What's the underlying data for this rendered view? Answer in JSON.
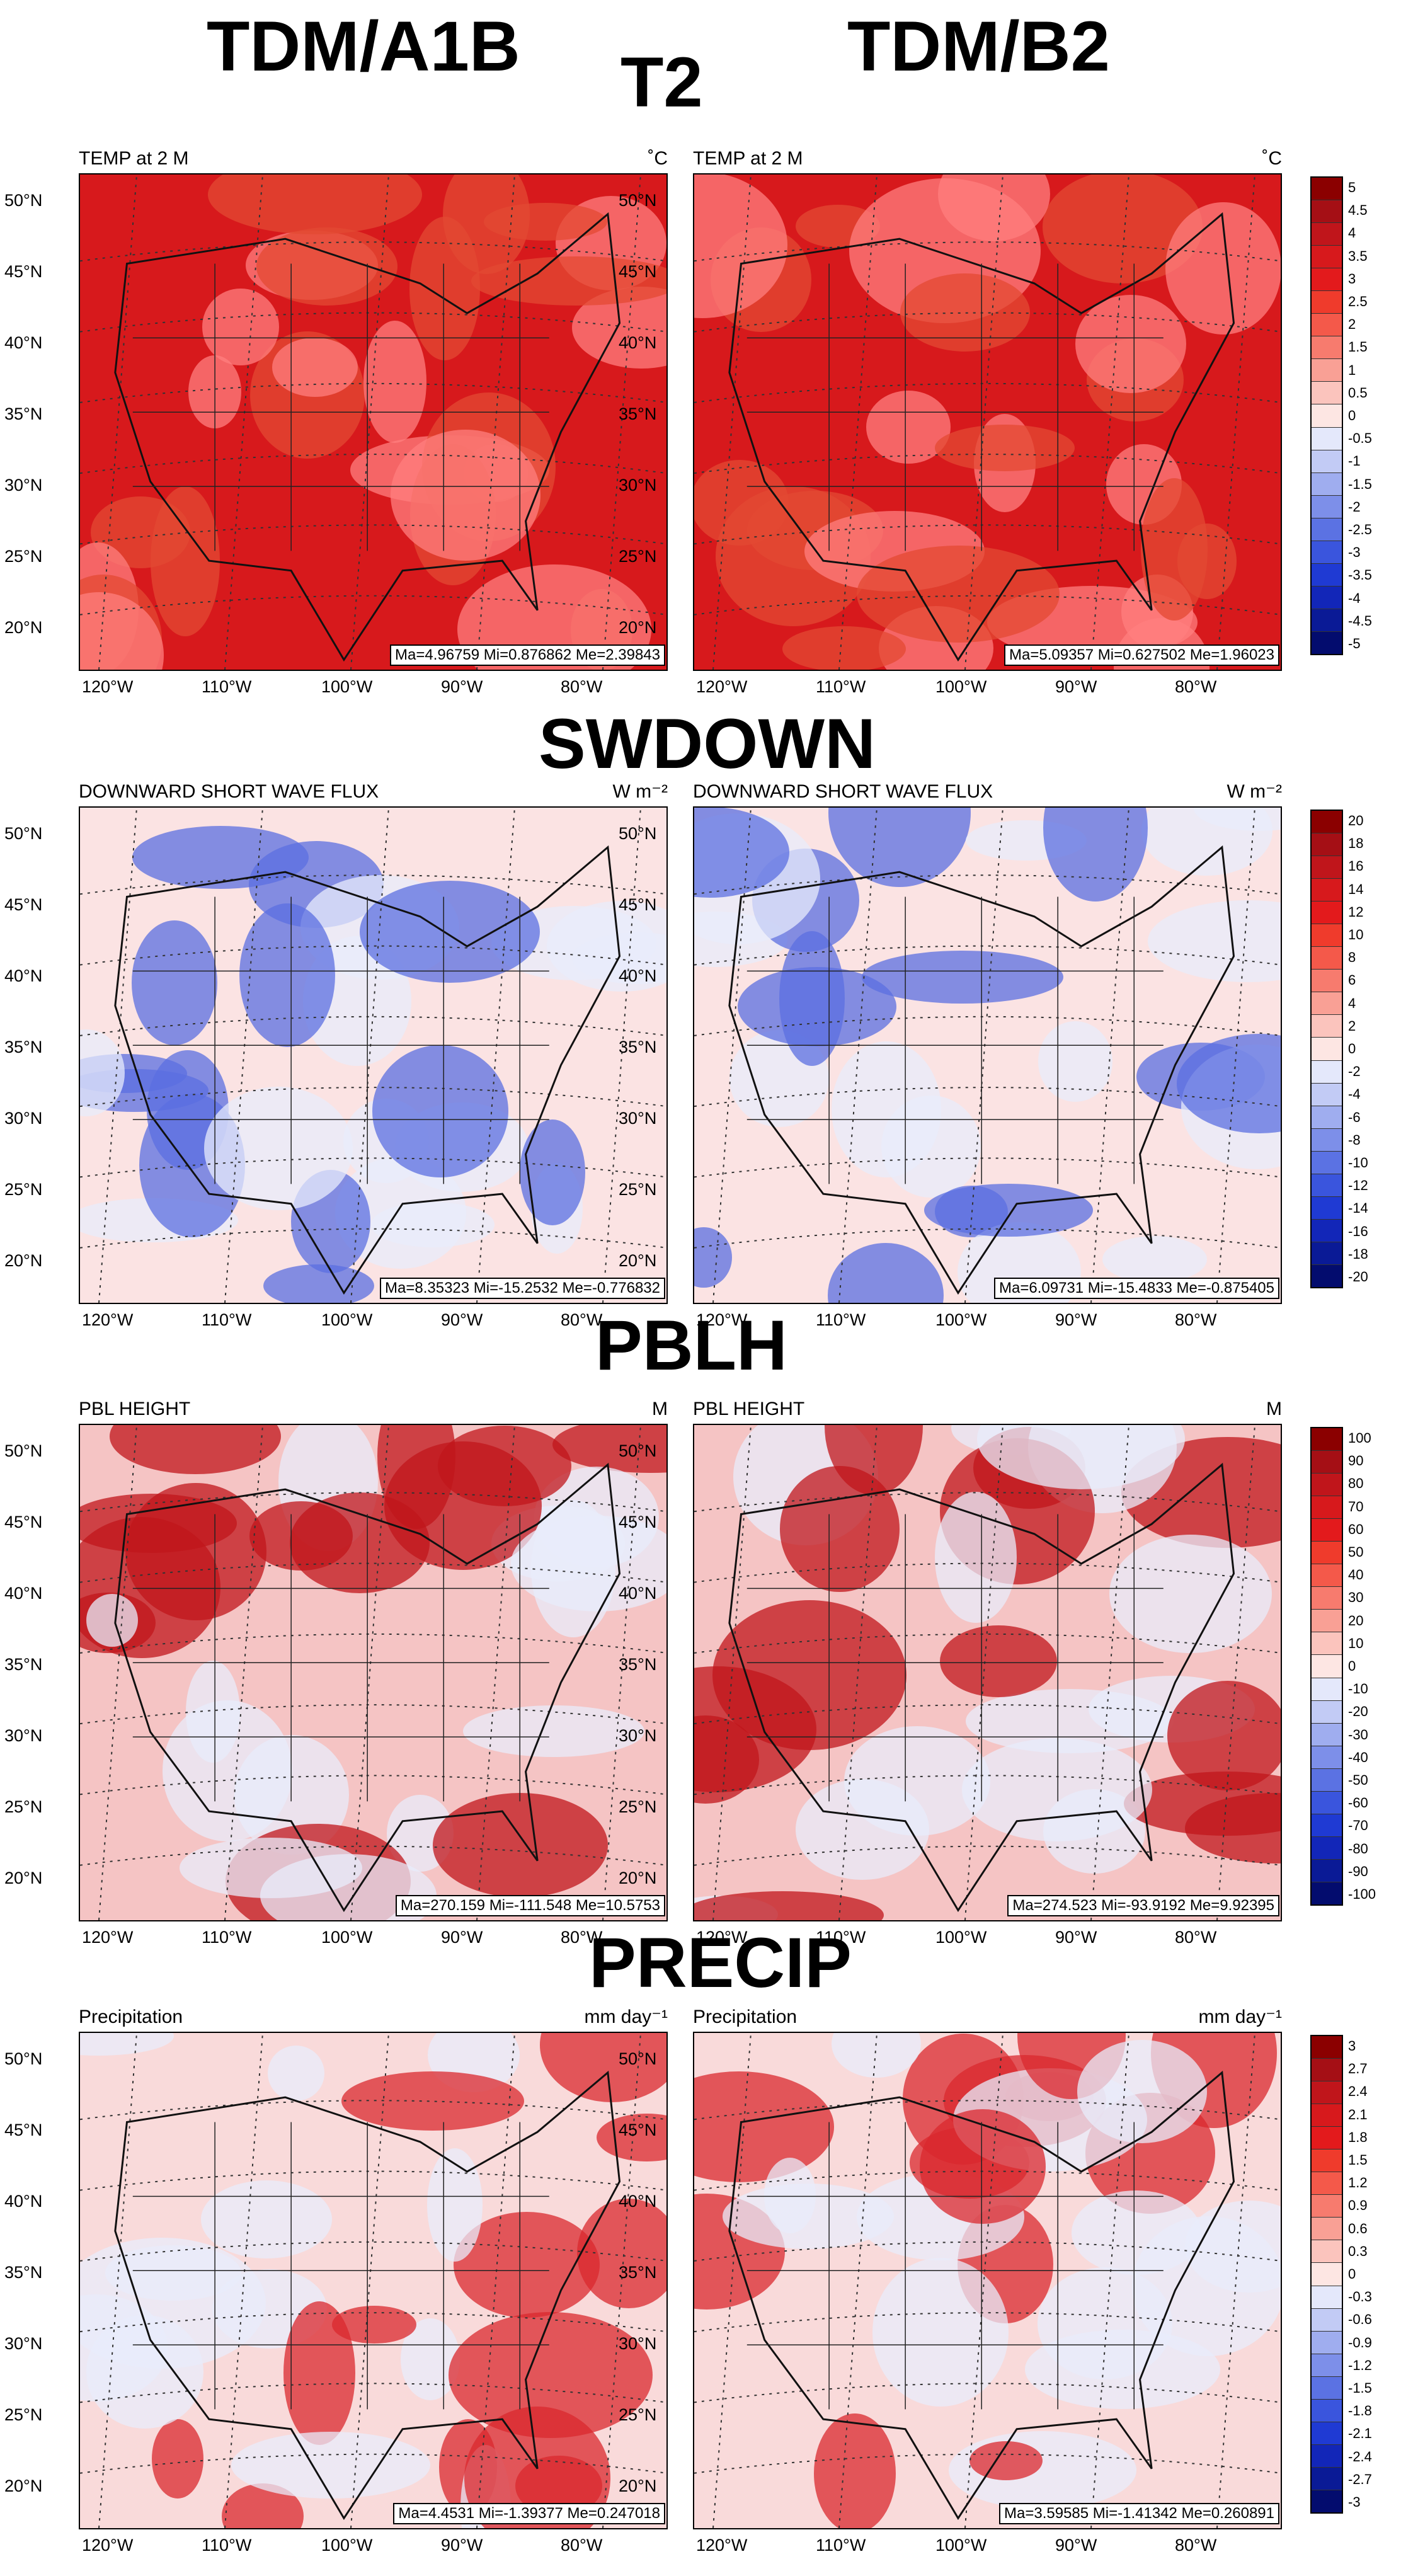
{
  "headers": {
    "left": "TDM/A1B",
    "right": "TDM/B2"
  },
  "lat_ticks": [
    "50°N",
    "45°N",
    "40°N",
    "35°N",
    "30°N",
    "25°N",
    "20°N"
  ],
  "lon_ticks": [
    "120°W",
    "110°W",
    "100°W",
    "90°W",
    "80°W"
  ],
  "panels": [
    {
      "var": "T2",
      "title": "TEMP at 2 M",
      "unit": "˚C",
      "stats_left": "Ma=4.96759 Mi=0.876862 Me=2.39843",
      "stats_right": "Ma=5.09357 Mi=0.627502 Me=1.96023",
      "colorbar": [
        "5",
        "4.5",
        "4",
        "3.5",
        "3",
        "2.5",
        "2",
        "1.5",
        "1",
        "0.5",
        "0",
        "-0.5",
        "-1",
        "-1.5",
        "-2",
        "-2.5",
        "-3",
        "-3.5",
        "-4",
        "-4.5",
        "-5"
      ],
      "colors": [
        "#d7191c",
        "#e34a33",
        "#ff7f7f"
      ]
    },
    {
      "var": "SWDOWN",
      "title": "DOWNWARD SHORT WAVE FLUX",
      "unit": "W m⁻²",
      "stats_left": "Ma=8.35323 Mi=-15.2532 Me=-0.776832",
      "stats_right": "Ma=6.09731 Mi=-15.4833 Me=-0.875405",
      "colorbar": [
        "20",
        "18",
        "16",
        "14",
        "12",
        "10",
        "8",
        "6",
        "4",
        "2",
        "0",
        "-2",
        "-4",
        "-6",
        "-8",
        "-10",
        "-12",
        "-14",
        "-16",
        "-18",
        "-20"
      ],
      "colors": [
        "#fbe3e3",
        "#e8ecfb",
        "#5b6fe0"
      ]
    },
    {
      "var": "PBLH",
      "title": "PBL HEIGHT",
      "unit": "M",
      "stats_left": "Ma=270.159 Mi=-111.548 Me=10.5753",
      "stats_right": "Ma=274.523 Mi=-93.9192 Me=9.92395",
      "colorbar": [
        "100",
        "90",
        "80",
        "70",
        "60",
        "50",
        "40",
        "30",
        "20",
        "10",
        "0",
        "-10",
        "-20",
        "-30",
        "-40",
        "-50",
        "-60",
        "-70",
        "-80",
        "-90",
        "-100"
      ],
      "colors": [
        "#f5c4c4",
        "#e8ecfb",
        "#c0151b"
      ]
    },
    {
      "var": "PRECIP",
      "title": "Precipitation",
      "unit": "mm day⁻¹",
      "stats_left": "Ma=4.4531 Mi=-1.39377 Me=0.247018",
      "stats_right": "Ma=3.59585 Mi=-1.41342 Me=0.260891",
      "colorbar": [
        "3",
        "2.7",
        "2.4",
        "2.1",
        "1.8",
        "1.5",
        "1.2",
        "0.9",
        "0.6",
        "0.3",
        "0",
        "-0.3",
        "-0.6",
        "-0.9",
        "-1.2",
        "-1.5",
        "-1.8",
        "-2.1",
        "-2.4",
        "-2.7",
        "-3"
      ],
      "colors": [
        "#f9dada",
        "#e8ecfb",
        "#d9282e"
      ]
    }
  ],
  "palette": [
    "#8b0000",
    "#a50f15",
    "#c0151b",
    "#d7191c",
    "#e31a1c",
    "#ef3b2c",
    "#f4594a",
    "#f77b6e",
    "#f9a095",
    "#fbc4bd",
    "#fde6e3",
    "#e4e8fb",
    "#c2cbf5",
    "#9fadef",
    "#7d8fe9",
    "#5b72e3",
    "#3a55dd",
    "#1f3ad3",
    "#1226b8",
    "#0a1a96",
    "#030c6e"
  ]
}
